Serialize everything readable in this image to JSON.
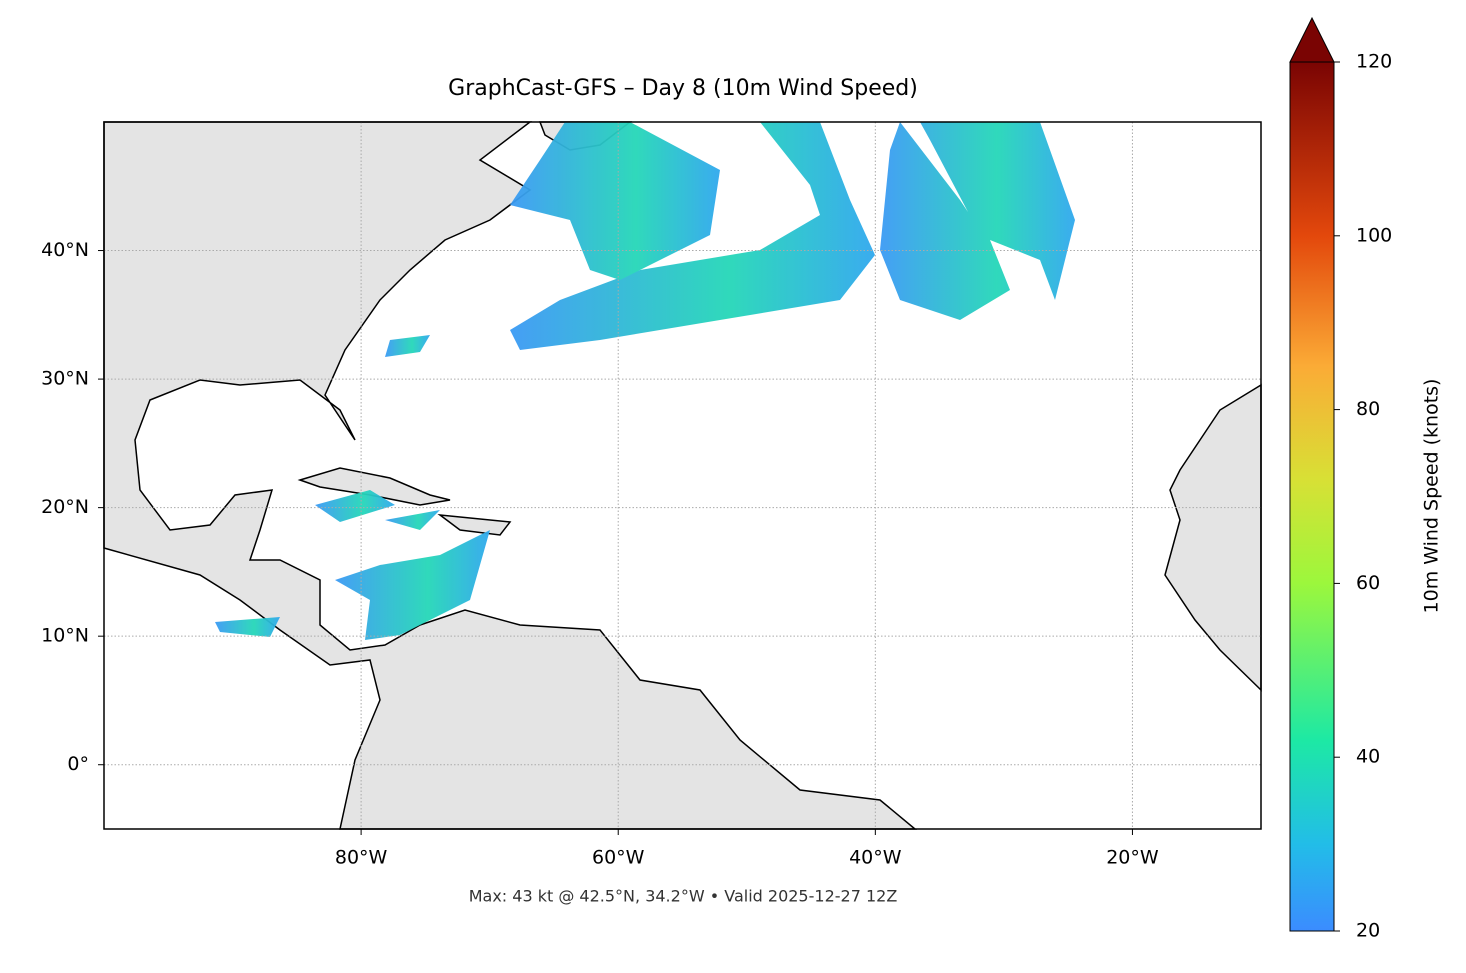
{
  "title": "GraphCast-GFS – Day 8 (10m Wind Speed)",
  "map": {
    "lonlim": [
      -100,
      -10
    ],
    "latlim": [
      -5,
      50
    ],
    "lon_ticks": [
      {
        "value": -80,
        "label": "80°W"
      },
      {
        "value": -60,
        "label": "60°W"
      },
      {
        "value": -40,
        "label": "40°W"
      },
      {
        "value": -20,
        "label": "20°W"
      }
    ],
    "lat_ticks": [
      {
        "value": 0,
        "label": "0°"
      },
      {
        "value": 10,
        "label": "10°N"
      },
      {
        "value": 20,
        "label": "20°N"
      },
      {
        "value": 30,
        "label": "30°N"
      },
      {
        "value": 40,
        "label": "40°N"
      }
    ]
  },
  "colorbar": {
    "label": "10m Wind Speed (knots)",
    "lim": [
      20,
      120
    ],
    "ticks": [
      20,
      40,
      60,
      80,
      100,
      120
    ]
  },
  "footer": "Max: 43 kt @ 42.5°N, 34.2°W • Valid 2025-12-27 12Z"
}
